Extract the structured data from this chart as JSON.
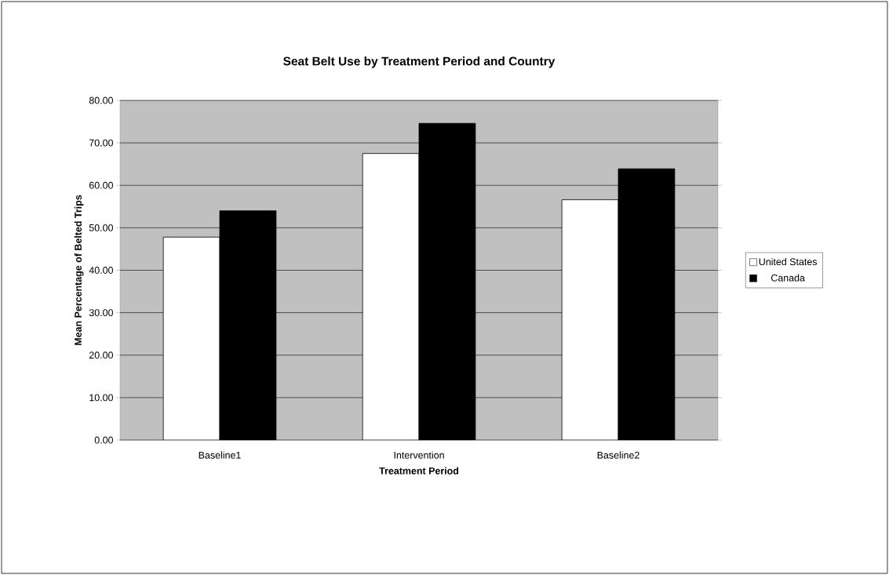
{
  "chart_data": {
    "type": "bar",
    "title": "Seat Belt Use by Treatment Period and Country",
    "xlabel": "Treatment Period",
    "ylabel": "Mean Percentage of Belted Trips",
    "categories": [
      "Baseline1",
      "Intervention",
      "Baseline2"
    ],
    "series": [
      {
        "name": "United States",
        "color": "#ffffff",
        "values": [
          47.8,
          67.5,
          56.6
        ]
      },
      {
        "name": "Canada",
        "color": "#000000",
        "values": [
          54.0,
          74.6,
          63.9
        ]
      }
    ],
    "ylim": [
      0,
      80
    ],
    "yticks": [
      {
        "value": 0,
        "label": "0.00"
      },
      {
        "value": 10,
        "label": "10.00"
      },
      {
        "value": 20,
        "label": "20.00"
      },
      {
        "value": 30,
        "label": "30.00"
      },
      {
        "value": 40,
        "label": "40.00"
      },
      {
        "value": 50,
        "label": "50.00"
      },
      {
        "value": 60,
        "label": "60.00"
      },
      {
        "value": 70,
        "label": "70.00"
      },
      {
        "value": 80,
        "label": "80.00"
      }
    ],
    "grid": "y",
    "legend": "right"
  }
}
